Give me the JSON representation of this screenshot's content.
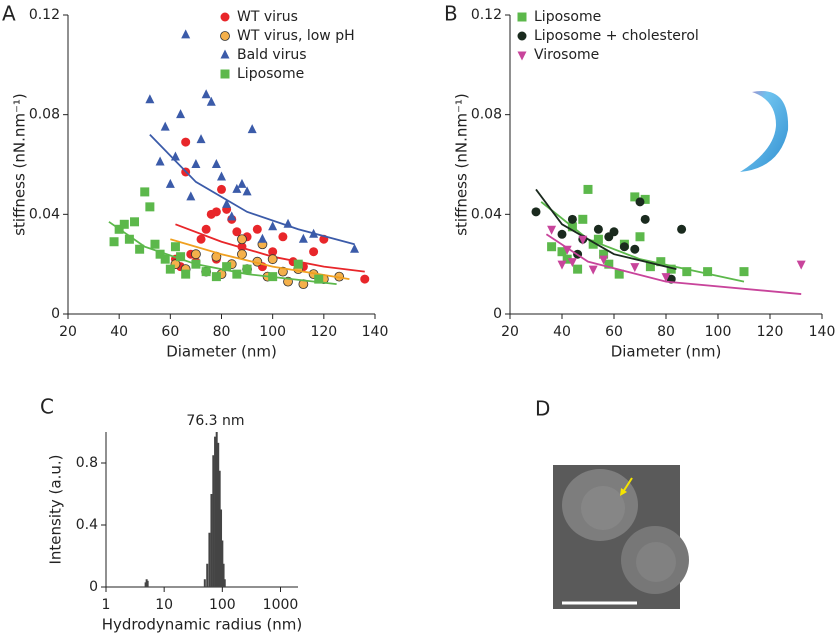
{
  "chart_data": [
    {
      "type": "scatter",
      "label": "A",
      "xlabel": "Diameter (nm)",
      "ylabel": "stiffness (nN.nm⁻¹)",
      "xlim": [
        20,
        140
      ],
      "xticks": [
        20,
        40,
        60,
        80,
        100,
        120,
        140
      ],
      "ylim": [
        0,
        0.12
      ],
      "yticks": [
        0,
        0.04,
        0.08,
        0.12
      ],
      "legend": "upper right",
      "series": [
        {
          "name": "WT virus",
          "color": "#e8262a",
          "marker": "circle",
          "x": [
            62,
            64,
            66,
            66,
            68,
            70,
            72,
            74,
            76,
            78,
            78,
            80,
            82,
            84,
            86,
            88,
            90,
            94,
            96,
            100,
            104,
            108,
            112,
            116,
            120,
            136
          ],
          "values": [
            0.022,
            0.019,
            0.069,
            0.057,
            0.024,
            0.021,
            0.03,
            0.034,
            0.04,
            0.041,
            0.022,
            0.05,
            0.042,
            0.038,
            0.033,
            0.027,
            0.031,
            0.034,
            0.019,
            0.025,
            0.031,
            0.021,
            0.019,
            0.025,
            0.03,
            0.014
          ],
          "fit": {
            "x": [
              62,
              80,
              100,
              120,
              136
            ],
            "values": [
              0.036,
              0.029,
              0.023,
              0.019,
              0.017
            ]
          }
        },
        {
          "name": "WT virus, low pH",
          "color": "#f4b04b",
          "edgecolor": "#333333",
          "marker": "circle",
          "x": [
            62,
            66,
            70,
            74,
            78,
            80,
            84,
            88,
            90,
            94,
            98,
            100,
            104,
            106,
            110,
            112,
            116,
            120,
            126,
            88,
            96
          ],
          "values": [
            0.02,
            0.018,
            0.024,
            0.017,
            0.023,
            0.016,
            0.02,
            0.024,
            0.018,
            0.021,
            0.015,
            0.022,
            0.017,
            0.013,
            0.018,
            0.012,
            0.016,
            0.014,
            0.015,
            0.03,
            0.028
          ],
          "fit": {
            "x": [
              60,
              80,
              100,
              130
            ],
            "values": [
              0.03,
              0.024,
              0.019,
              0.014
            ]
          }
        },
        {
          "name": "Bald virus",
          "color": "#3b5ba9",
          "marker": "triangle",
          "x": [
            52,
            56,
            58,
            60,
            62,
            64,
            66,
            68,
            70,
            72,
            74,
            76,
            78,
            80,
            82,
            84,
            86,
            88,
            90,
            92,
            96,
            100,
            106,
            112,
            116,
            132
          ],
          "values": [
            0.086,
            0.061,
            0.075,
            0.052,
            0.063,
            0.08,
            0.112,
            0.047,
            0.06,
            0.07,
            0.088,
            0.085,
            0.06,
            0.055,
            0.044,
            0.039,
            0.05,
            0.052,
            0.049,
            0.074,
            0.03,
            0.035,
            0.036,
            0.03,
            0.032,
            0.026
          ],
          "fit": {
            "x": [
              52,
              70,
              90,
              110,
              132
            ],
            "values": [
              0.072,
              0.053,
              0.041,
              0.034,
              0.028
            ]
          }
        },
        {
          "name": "Liposome",
          "color": "#5cb84b",
          "marker": "square",
          "x": [
            38,
            40,
            42,
            44,
            46,
            48,
            50,
            52,
            54,
            56,
            58,
            60,
            62,
            64,
            66,
            70,
            74,
            78,
            82,
            86,
            90,
            100,
            110,
            118
          ],
          "values": [
            0.029,
            0.034,
            0.036,
            0.03,
            0.037,
            0.026,
            0.049,
            0.043,
            0.028,
            0.024,
            0.022,
            0.018,
            0.027,
            0.023,
            0.016,
            0.02,
            0.017,
            0.015,
            0.019,
            0.016,
            0.018,
            0.015,
            0.02,
            0.014
          ],
          "fit": {
            "x": [
              36,
              50,
              70,
              90,
              125
            ],
            "values": [
              0.037,
              0.027,
              0.02,
              0.016,
              0.012
            ]
          }
        }
      ]
    },
    {
      "type": "scatter",
      "label": "B",
      "xlabel": "Diameter (nm)",
      "ylabel": "stiffness (nN.nm⁻¹)",
      "xlim": [
        20,
        140
      ],
      "xticks": [
        20,
        40,
        60,
        80,
        100,
        120,
        140
      ],
      "ylim": [
        0,
        0.12
      ],
      "yticks": [
        0,
        0.04,
        0.08,
        0.12
      ],
      "legend": "upper left",
      "series": [
        {
          "name": "Liposome",
          "color": "#5cb84b",
          "marker": "square",
          "x": [
            36,
            40,
            42,
            44,
            46,
            48,
            50,
            52,
            54,
            56,
            58,
            62,
            64,
            68,
            70,
            72,
            74,
            78,
            82,
            88,
            96,
            110
          ],
          "values": [
            0.027,
            0.025,
            0.022,
            0.035,
            0.018,
            0.038,
            0.05,
            0.028,
            0.03,
            0.024,
            0.02,
            0.016,
            0.028,
            0.047,
            0.031,
            0.046,
            0.019,
            0.021,
            0.018,
            0.017,
            0.017,
            0.017
          ],
          "fit": {
            "x": [
              32,
              50,
              70,
              110
            ],
            "values": [
              0.045,
              0.03,
              0.022,
              0.013
            ]
          }
        },
        {
          "name": "Liposome + cholesterol",
          "color": "#1a2a1e",
          "marker": "circle",
          "x": [
            30,
            40,
            44,
            48,
            54,
            58,
            60,
            64,
            70,
            72,
            86,
            82,
            46,
            68
          ],
          "values": [
            0.041,
            0.032,
            0.038,
            0.03,
            0.034,
            0.031,
            0.033,
            0.027,
            0.045,
            0.038,
            0.034,
            0.014,
            0.024,
            0.026
          ],
          "fit": {
            "x": [
              30,
              40,
              60,
              84
            ],
            "values": [
              0.05,
              0.036,
              0.024,
              0.018
            ]
          }
        },
        {
          "name": "Virosome",
          "color": "#c8449b",
          "marker": "triangle-down",
          "x": [
            36,
            40,
            42,
            44,
            48,
            52,
            56,
            68,
            80,
            132
          ],
          "values": [
            0.034,
            0.02,
            0.026,
            0.021,
            0.03,
            0.018,
            0.022,
            0.019,
            0.015,
            0.02
          ],
          "fit": {
            "x": [
              34,
              50,
              80,
              132
            ],
            "values": [
              0.032,
              0.021,
              0.013,
              0.008
            ]
          }
        }
      ]
    },
    {
      "type": "bar",
      "label": "C",
      "xlabel": "Hydrodynamic radius (nm)",
      "ylabel": "Intensity (a.u.)",
      "annotation": "76.3 nm",
      "xscale": "log",
      "xlim": [
        1,
        2000
      ],
      "xticks": [
        1,
        10,
        100,
        1000
      ],
      "ylim": [
        0,
        1
      ],
      "yticks": [
        0,
        0.4,
        0.8
      ],
      "color": "#444444",
      "x": [
        4.8,
        5.0,
        5.2,
        50,
        55,
        60,
        65,
        70,
        75,
        80,
        85,
        90,
        95,
        100,
        105,
        110
      ],
      "values": [
        0.03,
        0.05,
        0.04,
        0.05,
        0.15,
        0.35,
        0.6,
        0.85,
        0.97,
        1.0,
        0.93,
        0.75,
        0.5,
        0.3,
        0.15,
        0.05
      ]
    }
  ],
  "image_panel": {
    "label": "D"
  }
}
